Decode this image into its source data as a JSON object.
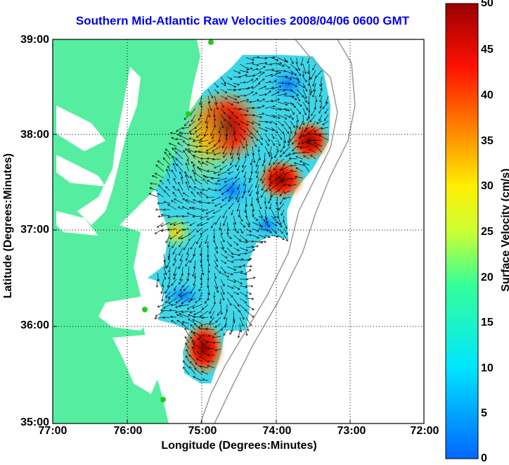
{
  "title": "Southern Mid-Atlantic Raw Velocities 2008/04/06 0600 GMT",
  "axes": {
    "xlabel": "Longitude (Degrees:Minutes)",
    "ylabel": "Latitude (Degrees:Minutes)",
    "xticks": [
      "77:00",
      "76:00",
      "75:00",
      "74:00",
      "73:00",
      "72:00"
    ],
    "yticks": [
      "39:00",
      "38:00",
      "37:00",
      "36:00",
      "35:00"
    ]
  },
  "colorbar": {
    "label": "Surface Velocity (cm/s)",
    "ticks": [
      "50",
      "45",
      "40",
      "35",
      "30",
      "25",
      "20",
      "15",
      "10",
      "5",
      "0"
    ],
    "min": 0,
    "max": 50
  },
  "colors": {
    "land": "#55eea0",
    "ocean": "#ffffff",
    "title": "#0000ee",
    "station": "#22cc22"
  }
}
